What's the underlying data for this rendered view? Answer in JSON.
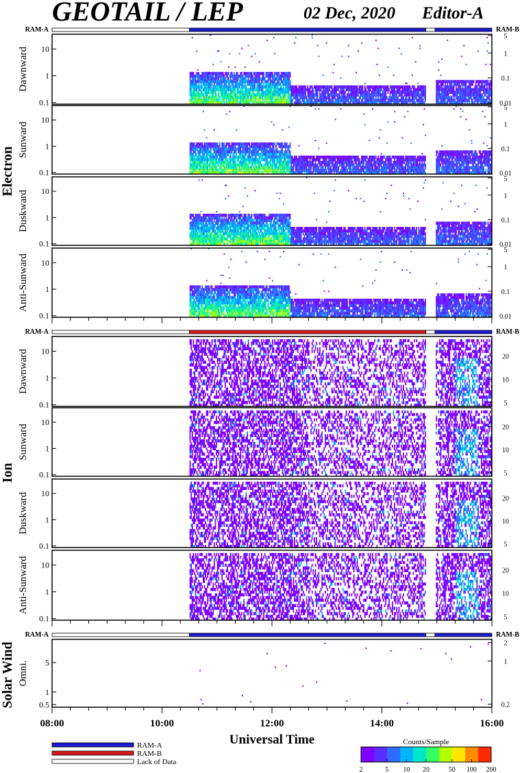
{
  "header": {
    "title": "GEOTAIL / LEP",
    "date": "02 Dec, 2020",
    "editor": "Editor-A"
  },
  "colors": {
    "ram_a": "#1a1ad0",
    "ram_b": "#d41a1a",
    "lack": "#ffffff",
    "colormap": [
      "#8000ff",
      "#5a2cff",
      "#2f6cff",
      "#00b4ff",
      "#00e6c8",
      "#32ff64",
      "#b4ff00",
      "#ffe600",
      "#ff8c00",
      "#ff2a00"
    ]
  },
  "chart_data": {
    "type": "heatmap",
    "x_axis": {
      "label": "Universal Time",
      "range": [
        "08:00",
        "16:00"
      ],
      "ticks": [
        "08:00",
        "10:00",
        "12:00",
        "14:00",
        "16:00"
      ]
    },
    "data_start": "10:30",
    "data_gap": [
      "14:48",
      "14:58"
    ],
    "groups": [
      {
        "name": "Electron",
        "ram_bar": {
          "left_label": "RAM-A",
          "right_label": "RAM-B",
          "segments": [
            {
              "from": "08:00",
              "to": "10:30",
              "mode": "lack"
            },
            {
              "from": "10:30",
              "to": "14:48",
              "mode": "ram_a"
            },
            {
              "from": "14:48",
              "to": "14:58",
              "mode": "lack"
            },
            {
              "from": "14:58",
              "to": "16:00",
              "mode": "ram_a"
            }
          ]
        },
        "panels": [
          {
            "label": "Dawnward",
            "left_ticks": [
              "0.1",
              "1",
              "10"
            ],
            "right_ticks": [
              "0.01",
              "0.1",
              "1",
              "5"
            ]
          },
          {
            "label": "Sunward",
            "left_ticks": [
              "0.1",
              "1",
              "10"
            ],
            "right_ticks": [
              "0.01",
              "0.1",
              "1",
              "5"
            ]
          },
          {
            "label": "Duskward",
            "left_ticks": [
              "0.1",
              "1",
              "10"
            ],
            "right_ticks": [
              "0.01",
              "0.1",
              "1",
              "5"
            ]
          },
          {
            "label": "Anti-Sunward",
            "left_ticks": [
              "0.1",
              "1",
              "10"
            ],
            "right_ticks": [
              "0.01",
              "0.1",
              "1",
              "5"
            ]
          }
        ]
      },
      {
        "name": "Ion",
        "ram_bar": {
          "left_label": "RAM-A",
          "right_label": "RAM-B",
          "segments": [
            {
              "from": "08:00",
              "to": "10:30",
              "mode": "lack"
            },
            {
              "from": "10:30",
              "to": "14:48",
              "mode": "ram_b"
            },
            {
              "from": "14:48",
              "to": "14:58",
              "mode": "lack"
            },
            {
              "from": "14:58",
              "to": "16:00",
              "mode": "ram_a"
            }
          ]
        },
        "panels": [
          {
            "label": "Dawnward",
            "left_ticks": [
              "0.1",
              "1",
              "10"
            ],
            "right_ticks": [
              "5",
              "10",
              "20"
            ]
          },
          {
            "label": "Sunward",
            "left_ticks": [
              "0.1",
              "1",
              "10"
            ],
            "right_ticks": [
              "5",
              "10",
              "20"
            ]
          },
          {
            "label": "Duskward",
            "left_ticks": [
              "0.1",
              "1",
              "10"
            ],
            "right_ticks": [
              "5",
              "10",
              "20"
            ]
          },
          {
            "label": "Anti-Sunward",
            "left_ticks": [
              "0.1",
              "1",
              "10"
            ],
            "right_ticks": [
              "5",
              "10",
              "20"
            ]
          }
        ]
      },
      {
        "name": "Solar Wind",
        "ram_bar": {
          "left_label": "RAM-A",
          "right_label": "RAM-B",
          "segments": [
            {
              "from": "08:00",
              "to": "10:30",
              "mode": "lack"
            },
            {
              "from": "10:30",
              "to": "14:48",
              "mode": "ram_a"
            },
            {
              "from": "14:48",
              "to": "14:58",
              "mode": "lack"
            },
            {
              "from": "14:58",
              "to": "16:00",
              "mode": "ram_a"
            }
          ]
        },
        "panels": [
          {
            "label": "Omni.",
            "left_ticks": [
              "0.5",
              "1",
              "5"
            ],
            "right_ticks": [
              "0.2",
              "1",
              "2"
            ]
          }
        ]
      }
    ],
    "legend": {
      "items": [
        {
          "label": "RAM-A",
          "mode": "ram_a"
        },
        {
          "label": "RAM-B",
          "mode": "ram_b"
        },
        {
          "label": "Lack of Data",
          "mode": "lack"
        }
      ]
    },
    "colorbar": {
      "title": "Counts/Sample",
      "ticks": [
        "2",
        "5",
        "10",
        "20",
        "50",
        "100",
        "200"
      ],
      "scale": "log"
    }
  }
}
